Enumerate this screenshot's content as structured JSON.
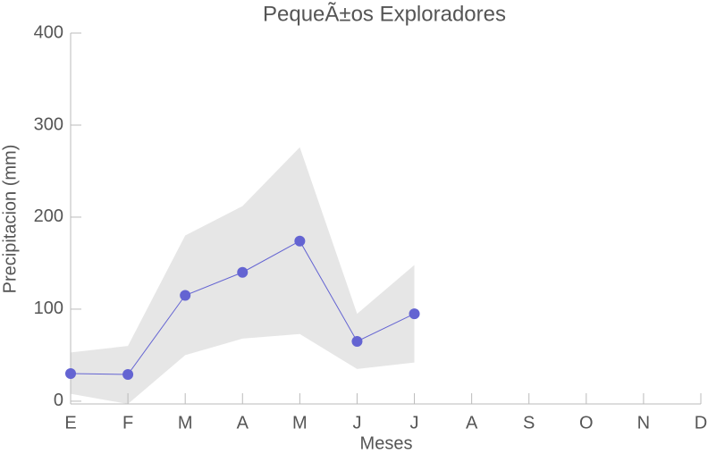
{
  "chart_data": {
    "type": "line",
    "title": "PequeÃ±os Exploradores",
    "xlabel": "Meses",
    "ylabel": "Precipitacion (mm)",
    "categories": [
      "E",
      "F",
      "M",
      "A",
      "M",
      "J",
      "J",
      "A",
      "S",
      "O",
      "N",
      "D"
    ],
    "series": [
      {
        "color": "#6464d2",
        "values": [
          30,
          29,
          115,
          140,
          174,
          65,
          95,
          null,
          null,
          null,
          null,
          null
        ],
        "lower": [
          8,
          -3,
          50,
          68,
          73,
          35,
          42,
          null,
          null,
          null,
          null,
          null
        ],
        "upper": [
          53,
          60,
          180,
          212,
          276,
          95,
          148,
          null,
          null,
          null,
          null,
          null
        ],
        "band_color": "#e6e6e6"
      }
    ],
    "ylim": [
      -3,
      400
    ],
    "yticks": [
      0,
      100,
      200,
      300,
      400
    ]
  }
}
